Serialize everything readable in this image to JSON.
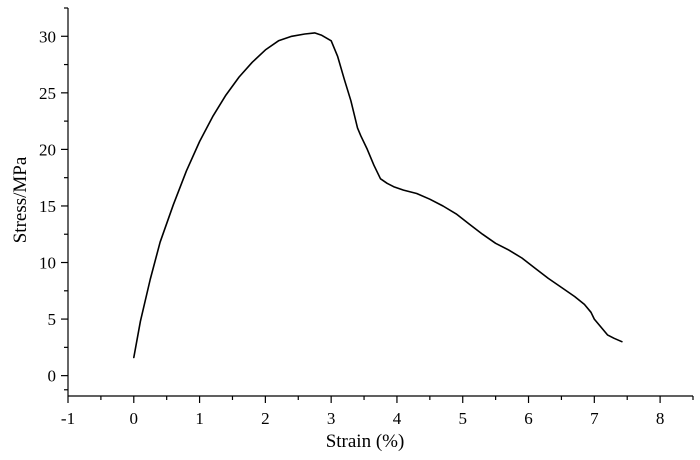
{
  "chart_data": {
    "type": "line",
    "title": "",
    "xlabel": "Strain (%)",
    "ylabel": "Stress/MPa",
    "xlim": [
      -1,
      8.5
    ],
    "ylim": [
      -1.8,
      32.5
    ],
    "x_ticks": [
      -1,
      0,
      1,
      2,
      3,
      4,
      5,
      6,
      7,
      8
    ],
    "y_ticks": [
      0,
      5,
      10,
      15,
      20,
      25,
      30
    ],
    "grid": false,
    "series": [
      {
        "x": [
          0.0,
          0.1,
          0.25,
          0.4,
          0.6,
          0.8,
          1.0,
          1.2,
          1.4,
          1.6,
          1.8,
          2.0,
          2.2,
          2.4,
          2.6,
          2.75,
          2.85,
          3.0,
          3.1,
          3.2,
          3.3,
          3.4,
          3.45,
          3.55,
          3.65,
          3.75,
          3.85,
          3.95,
          4.1,
          4.3,
          4.5,
          4.7,
          4.9,
          5.1,
          5.3,
          5.5,
          5.7,
          5.9,
          6.1,
          6.3,
          6.5,
          6.7,
          6.85,
          6.95,
          7.0,
          7.1,
          7.2,
          7.3,
          7.42
        ],
        "y": [
          1.6,
          4.8,
          8.5,
          11.8,
          15.1,
          18.1,
          20.7,
          22.9,
          24.8,
          26.4,
          27.7,
          28.8,
          29.6,
          30.0,
          30.2,
          30.3,
          30.1,
          29.6,
          28.2,
          26.2,
          24.3,
          21.9,
          21.2,
          20.0,
          18.6,
          17.4,
          17.0,
          16.7,
          16.4,
          16.1,
          15.6,
          15.0,
          14.3,
          13.4,
          12.5,
          11.7,
          11.1,
          10.4,
          9.5,
          8.6,
          7.8,
          7.0,
          6.3,
          5.6,
          5.0,
          4.3,
          3.6,
          3.3,
          3.0
        ]
      }
    ]
  }
}
